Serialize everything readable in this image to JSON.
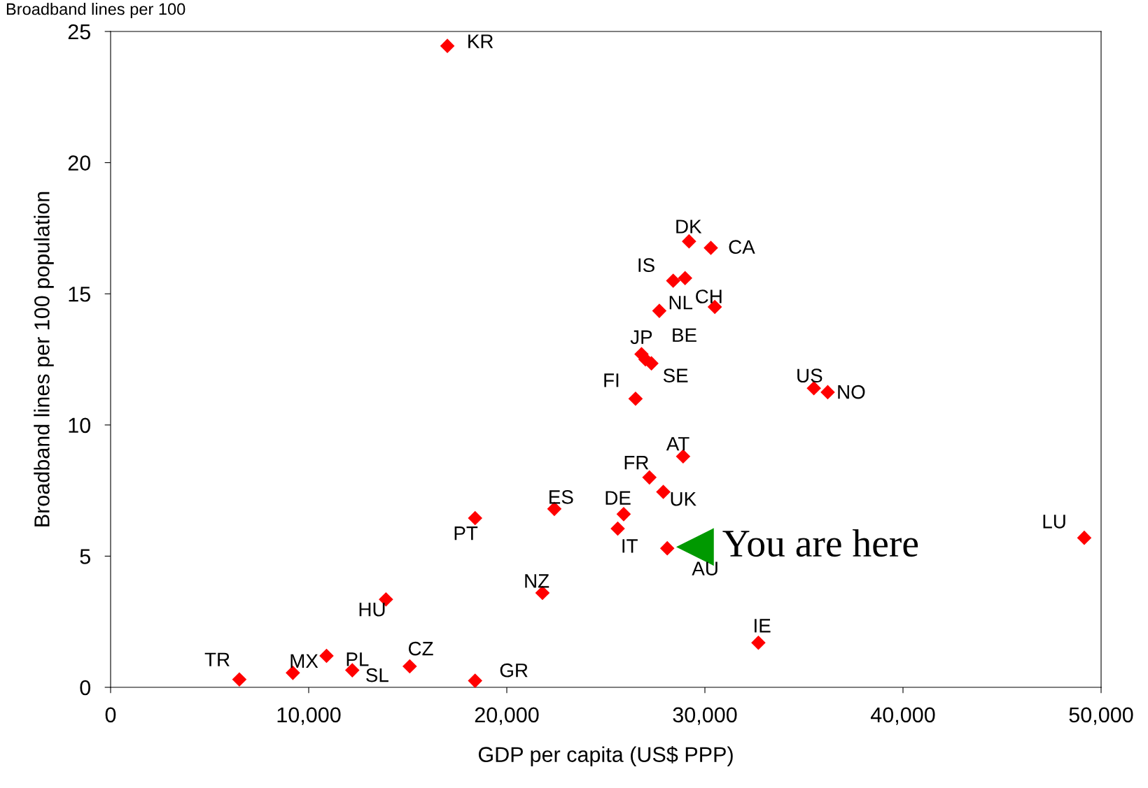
{
  "chart_data": {
    "type": "scatter",
    "xlabel": "GDP per capita (US$ PPP)",
    "ylabel": "Broadband lines per 100 population",
    "xlim": [
      0,
      50000
    ],
    "ylim": [
      0,
      25
    ],
    "xticks": [
      {
        "value": 0,
        "label": "0"
      },
      {
        "value": 10000,
        "label": "10,000"
      },
      {
        "value": 20000,
        "label": "20,000"
      },
      {
        "value": 30000,
        "label": "30,000"
      },
      {
        "value": 40000,
        "label": "40,000"
      },
      {
        "value": 50000,
        "label": "50,000"
      }
    ],
    "yticks": [
      0,
      5,
      10,
      15,
      20,
      25
    ],
    "grid": false,
    "legend": false,
    "marker": "diamond",
    "series": [
      {
        "color": "#ff0000",
        "x": [
          17000,
          29200,
          30300,
          28400,
          29000,
          27700,
          30500,
          26800,
          27000,
          27300,
          26500,
          35500,
          36200,
          28900,
          27200,
          27900,
          22400,
          25900,
          25600,
          18400,
          28100,
          49150,
          21800,
          13900,
          32700,
          6500,
          9200,
          10900,
          12200,
          15100,
          18400
        ],
        "values": [
          24.45,
          17.0,
          16.75,
          15.5,
          15.6,
          14.35,
          14.5,
          12.7,
          12.5,
          12.35,
          11.0,
          11.4,
          11.25,
          8.8,
          8.0,
          7.45,
          6.8,
          6.6,
          6.05,
          6.45,
          5.3,
          5.7,
          3.6,
          3.35,
          1.7,
          0.3,
          0.55,
          1.2,
          0.65,
          0.8,
          0.25
        ],
        "value_labels": [
          "KR",
          "DK",
          "CA",
          "IS",
          null,
          "NL",
          "CH",
          "JP",
          "BE",
          "SE",
          "FI",
          "US",
          "NO",
          "AT",
          "FR",
          "UK",
          "ES",
          "DE",
          "IT",
          "PT",
          "AU",
          "LU",
          "NZ",
          "HU",
          "IE",
          "TR",
          "MX",
          "PL",
          "SL",
          "CZ",
          "GR"
        ]
      },
      {
        "name": "You are here",
        "color": "#009900",
        "marker": "triangle",
        "x": [
          29500
        ],
        "values": [
          5.35
        ]
      }
    ],
    "annotations": [
      "Broadband lines per 100"
    ]
  }
}
